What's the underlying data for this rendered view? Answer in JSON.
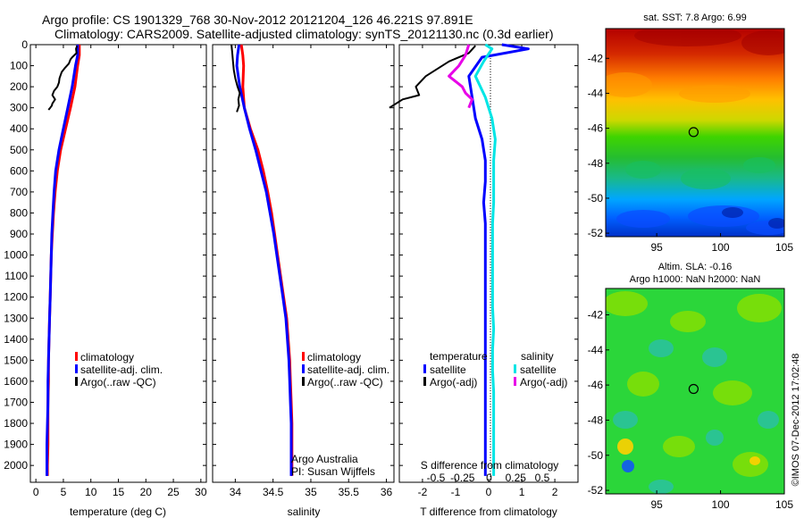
{
  "header": {
    "title_line1": "Argo profile: CS 1901329_768 30-Nov-2012 20121204_126 46.221S 97.891E",
    "title_line2": "Climatology: CARS2009. Satellite-adjusted climatology: synTS_20121130.nc (0.3d earlier)"
  },
  "colors": {
    "climatology": "#ff0000",
    "satellite": "#0000ff",
    "argo": "#000000",
    "sal_satellite": "#00e5e5",
    "sal_argo": "#e800e8"
  },
  "chart_data": [
    {
      "id": "temperature",
      "type": "line",
      "xlabel": "temperature (deg C)",
      "ylabel": "",
      "xlim": [
        -1,
        31
      ],
      "ylim": [
        2080,
        0
      ],
      "xticks": [
        0,
        5,
        10,
        15,
        20,
        25,
        30
      ],
      "xtick_labels": [
        "0",
        "5",
        "10",
        "15",
        "20",
        "25",
        "30"
      ],
      "yticks": [
        0,
        100,
        200,
        300,
        400,
        500,
        600,
        700,
        800,
        900,
        1000,
        1100,
        1200,
        1300,
        1400,
        1500,
        1600,
        1700,
        1800,
        1900,
        2000
      ],
      "ytick_labels": [
        "0",
        "100",
        "200",
        "300",
        "400",
        "500",
        "600",
        "700",
        "800",
        "900",
        "1000",
        "1100",
        "1200",
        "1300",
        "1400",
        "1500",
        "1600",
        "1700",
        "1800",
        "1900",
        "2000"
      ],
      "legend": [
        "climatology",
        "satellite-adj. clim.",
        "Argo(..raw -QC)"
      ],
      "series": [
        {
          "name": "climatology",
          "color_key": "climatology",
          "width": 3,
          "x": [
            7.9,
            7.9,
            7.6,
            7.1,
            6.3,
            5.4,
            4.5,
            3.9,
            3.5,
            3.2,
            3.0,
            2.8,
            2.7,
            2.6,
            2.5,
            2.4,
            2.3,
            2.3,
            2.2,
            2.2,
            2.2,
            2.1,
            2.1
          ],
          "y": [
            0,
            50,
            100,
            200,
            300,
            400,
            500,
            600,
            700,
            800,
            900,
            1000,
            1100,
            1200,
            1300,
            1400,
            1500,
            1600,
            1700,
            1800,
            1900,
            2000,
            2050
          ]
        },
        {
          "name": "satellite-adj. clim.",
          "color_key": "satellite",
          "width": 3,
          "x": [
            7.6,
            7.6,
            7.2,
            6.6,
            5.8,
            5.0,
            4.2,
            3.6,
            3.3,
            3.1,
            2.9,
            2.8,
            2.7,
            2.6,
            2.5,
            2.4,
            2.3,
            2.2,
            2.2,
            2.1,
            2.0,
            2.0,
            2.0
          ],
          "y": [
            0,
            50,
            100,
            200,
            300,
            400,
            500,
            600,
            700,
            800,
            900,
            1000,
            1100,
            1200,
            1300,
            1400,
            1500,
            1600,
            1700,
            1800,
            1900,
            2000,
            2050
          ]
        },
        {
          "name": "Argo(..raw -QC)",
          "color_key": "argo",
          "width": 2,
          "x": [
            7.5,
            7.3,
            7.4,
            6.6,
            6.3,
            6.0,
            5.3,
            4.7,
            4.3,
            4.2,
            3.9,
            3.3,
            3.0,
            3.5,
            3.0,
            2.9,
            2.6,
            2.3
          ],
          "y": [
            5,
            20,
            40,
            60,
            70,
            90,
            110,
            130,
            160,
            180,
            200,
            220,
            240,
            260,
            280,
            290,
            300,
            310
          ]
        }
      ]
    },
    {
      "id": "salinity",
      "type": "line",
      "xlabel": "salinity",
      "ylabel": "",
      "xlim": [
        33.7,
        36.1
      ],
      "ylim": [
        2080,
        0
      ],
      "xticks": [
        34,
        34.5,
        35,
        35.5,
        36
      ],
      "xtick_labels": [
        "34",
        "34.5",
        "35",
        "35.5",
        "36"
      ],
      "legend": [
        "climatology",
        "satellite-adj. clim.",
        "Argo(..raw -QC)"
      ],
      "annotations": [
        "Argo Australia",
        "PI: Susan Wijffels"
      ],
      "series": [
        {
          "name": "climatology",
          "color_key": "climatology",
          "width": 3,
          "x": [
            34.08,
            34.1,
            34.11,
            34.1,
            34.12,
            34.2,
            34.3,
            34.37,
            34.43,
            34.48,
            34.52,
            34.56,
            34.6,
            34.64,
            34.68,
            34.7,
            34.72,
            34.73,
            34.74,
            34.75,
            34.75,
            34.75,
            34.75
          ],
          "y": [
            0,
            50,
            100,
            200,
            300,
            400,
            500,
            600,
            700,
            800,
            900,
            1000,
            1100,
            1200,
            1300,
            1400,
            1500,
            1600,
            1700,
            1800,
            1900,
            2000,
            2050
          ]
        },
        {
          "name": "satellite-adj. clim.",
          "color_key": "satellite",
          "width": 3,
          "x": [
            34.05,
            34.03,
            34.02,
            34.06,
            34.12,
            34.19,
            34.27,
            34.34,
            34.41,
            34.46,
            34.51,
            34.55,
            34.59,
            34.63,
            34.67,
            34.69,
            34.71,
            34.72,
            34.73,
            34.74,
            34.74,
            34.74,
            34.74
          ],
          "y": [
            0,
            50,
            100,
            200,
            300,
            400,
            500,
            600,
            700,
            800,
            900,
            1000,
            1100,
            1200,
            1300,
            1400,
            1500,
            1600,
            1700,
            1800,
            1900,
            2000,
            2050
          ]
        },
        {
          "name": "Argo(..raw -QC)",
          "color_key": "argo",
          "width": 2,
          "x": [
            33.95,
            33.96,
            33.97,
            33.98,
            34.0,
            34.03,
            34.06,
            34.04,
            34.05,
            34.02
          ],
          "y": [
            0,
            40,
            80,
            120,
            160,
            200,
            230,
            260,
            290,
            320
          ]
        }
      ]
    },
    {
      "id": "difference",
      "type": "line",
      "xlabel": "T difference from climatology",
      "ylabel": "",
      "xlim": [
        -2.7,
        2.7
      ],
      "ylim": [
        2080,
        0
      ],
      "xticks": [
        -2,
        -1,
        0,
        1,
        2
      ],
      "xtick_labels": [
        "-2",
        "-1",
        "0",
        "1",
        "2"
      ],
      "s_axis_label": "S difference from climatology",
      "s_ticks": [
        -0.5,
        -0.25,
        0,
        0.25,
        0.5
      ],
      "s_tick_labels": [
        "-0.5",
        "-0.25",
        "0",
        "0.25",
        "0.5"
      ],
      "legend_groups": [
        "temperature",
        "salinity"
      ],
      "legend": [
        "satellite",
        "Argo(-adj)",
        "satellite",
        "Argo(-adj)"
      ],
      "series": [
        {
          "name": "satellite",
          "group": "temperature",
          "color_key": "satellite",
          "width": 3,
          "x": [
            0.4,
            1.2,
            -0.2,
            -0.6,
            -0.5,
            -0.4,
            -0.2,
            -0.1,
            -0.1,
            -0.15,
            -0.1,
            -0.1,
            -0.1,
            -0.1,
            -0.1,
            -0.1,
            -0.1,
            -0.1,
            -0.1,
            -0.1,
            -0.1,
            -0.1
          ],
          "y": [
            0,
            20,
            60,
            150,
            250,
            350,
            450,
            550,
            650,
            750,
            850,
            950,
            1050,
            1150,
            1250,
            1350,
            1450,
            1550,
            1650,
            1750,
            1900,
            2050
          ]
        },
        {
          "name": "Argo(-adj)",
          "group": "temperature",
          "color_key": "argo",
          "width": 2,
          "x": [
            -0.4,
            -0.6,
            -1.2,
            -1.9,
            -2.2,
            -2.1,
            -2.6,
            -3.0
          ],
          "y": [
            5,
            40,
            80,
            150,
            200,
            240,
            260,
            300
          ]
        },
        {
          "name": "satellite",
          "group": "salinity",
          "color_key": "sal_satellite",
          "width": 3,
          "x": [
            -0.1,
            0.1,
            -0.15,
            -0.4,
            -0.1,
            0.1,
            0.2,
            0.15,
            0.15,
            0.15,
            0.12,
            0.12,
            0.12,
            0.12,
            0.12,
            0.15,
            0.12,
            0.12,
            0.15,
            0.15,
            0.15,
            0.15
          ],
          "y": [
            0,
            20,
            80,
            150,
            250,
            350,
            450,
            550,
            650,
            750,
            850,
            950,
            1050,
            1150,
            1250,
            1350,
            1450,
            1550,
            1650,
            1750,
            1900,
            2050
          ]
        },
        {
          "name": "Argo(-adj)",
          "group": "salinity",
          "color_key": "sal_argo",
          "width": 3,
          "x": [
            -0.6,
            -0.7,
            -0.9,
            -1.2,
            -0.8,
            -0.7,
            -0.5,
            -0.6
          ],
          "y": [
            0,
            50,
            100,
            150,
            200,
            230,
            260,
            300
          ]
        }
      ]
    }
  ],
  "maps": [
    {
      "id": "sst-map",
      "title": "sat. SST: 7.8 Argo: 6.99",
      "lon_range": [
        91,
        105
      ],
      "lat_range": [
        -52.2,
        -40.3
      ],
      "xticks": [
        95,
        100,
        105
      ],
      "xtick_labels": [
        "95",
        "100",
        "105"
      ],
      "yticks": [
        -42,
        -44,
        -46,
        -48,
        -50,
        -52
      ],
      "ytick_labels": [
        "-42",
        "-44",
        "-46",
        "-48",
        "-50",
        "-52"
      ],
      "float_position": [
        97.891,
        -46.221
      ]
    },
    {
      "id": "sla-map",
      "title_line1": "Altim. SLA: -0.16",
      "title_line2": "Argo h1000: NaN h2000: NaN",
      "lon_range": [
        91,
        105
      ],
      "lat_range": [
        -52.2,
        -40.5
      ],
      "xticks": [
        95,
        100,
        105
      ],
      "xtick_labels": [
        "95",
        "100",
        "105"
      ],
      "yticks": [
        -42,
        -44,
        -46,
        -48,
        -50,
        -52
      ],
      "ytick_labels": [
        "-42",
        "-44",
        "-46",
        "-48",
        "-50",
        "-52"
      ],
      "float_position": [
        97.891,
        -46.221
      ]
    }
  ],
  "footer": {
    "watermark": "©IMOS 07-Dec-2012 17:02:48"
  }
}
